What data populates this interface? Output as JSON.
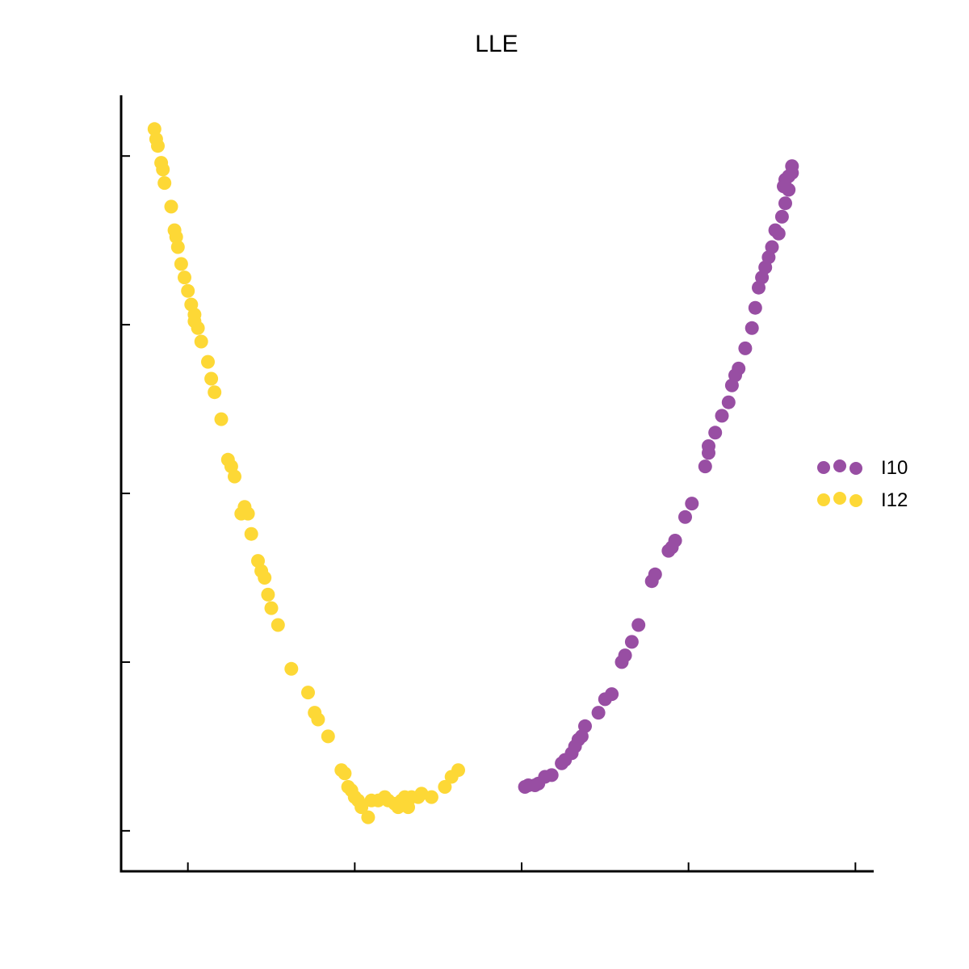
{
  "chart_data": {
    "type": "scatter",
    "title": "LLE",
    "xlabel": "",
    "ylabel": "",
    "xlim": [
      -0.095,
      0.13
    ],
    "ylim": [
      -0.02,
      0.21
    ],
    "x_ticks": [
      -0.075,
      -0.025,
      0.025,
      0.075,
      0.125
    ],
    "y_ticks": [
      -0.008,
      0.042,
      0.092,
      0.142,
      0.192
    ],
    "show_tick_labels": false,
    "grid": false,
    "legend_position": "right",
    "series": [
      {
        "name": "I10",
        "color": "#984ea3",
        "points": [
          [
            0.026,
            0.005
          ],
          [
            0.027,
            0.0055
          ],
          [
            0.029,
            0.0055
          ],
          [
            0.03,
            0.006
          ],
          [
            0.032,
            0.008
          ],
          [
            0.034,
            0.0085
          ],
          [
            0.037,
            0.012
          ],
          [
            0.038,
            0.013
          ],
          [
            0.04,
            0.015
          ],
          [
            0.041,
            0.017
          ],
          [
            0.042,
            0.019
          ],
          [
            0.044,
            0.023
          ],
          [
            0.048,
            0.027
          ],
          [
            0.05,
            0.031
          ],
          [
            0.052,
            0.0325
          ],
          [
            0.055,
            0.042
          ],
          [
            0.056,
            0.044
          ],
          [
            0.058,
            0.048
          ],
          [
            0.06,
            0.053
          ],
          [
            0.064,
            0.066
          ],
          [
            0.065,
            0.068
          ],
          [
            0.069,
            0.075
          ],
          [
            0.071,
            0.078
          ],
          [
            0.074,
            0.085
          ],
          [
            0.076,
            0.089
          ],
          [
            0.08,
            0.1
          ],
          [
            0.081,
            0.104
          ],
          [
            0.083,
            0.11
          ],
          [
            0.085,
            0.115
          ],
          [
            0.087,
            0.119
          ],
          [
            0.088,
            0.124
          ],
          [
            0.09,
            0.129
          ],
          [
            0.092,
            0.135
          ],
          [
            0.094,
            0.141
          ],
          [
            0.095,
            0.147
          ],
          [
            0.096,
            0.153
          ],
          [
            0.097,
            0.156
          ],
          [
            0.098,
            0.159
          ],
          [
            0.099,
            0.162
          ],
          [
            0.1,
            0.165
          ],
          [
            0.102,
            0.169
          ],
          [
            0.103,
            0.174
          ],
          [
            0.104,
            0.178
          ],
          [
            0.105,
            0.182
          ],
          [
            0.104,
            0.185
          ],
          [
            0.105,
            0.186
          ],
          [
            0.106,
            0.187
          ],
          [
            0.106,
            0.189
          ],
          [
            0.1035,
            0.183
          ],
          [
            0.101,
            0.17
          ],
          [
            0.089,
            0.127
          ],
          [
            0.081,
            0.106
          ],
          [
            0.07,
            0.076
          ],
          [
            0.043,
            0.02
          ]
        ]
      },
      {
        "name": "I12",
        "color": "#fdd836",
        "points": [
          [
            -0.085,
            0.2
          ],
          [
            -0.0845,
            0.197
          ],
          [
            -0.084,
            0.195
          ],
          [
            -0.083,
            0.19
          ],
          [
            -0.0825,
            0.188
          ],
          [
            -0.082,
            0.184
          ],
          [
            -0.08,
            0.177
          ],
          [
            -0.079,
            0.17
          ],
          [
            -0.0785,
            0.168
          ],
          [
            -0.078,
            0.165
          ],
          [
            -0.077,
            0.16
          ],
          [
            -0.076,
            0.156
          ],
          [
            -0.075,
            0.152
          ],
          [
            -0.074,
            0.148
          ],
          [
            -0.073,
            0.145
          ],
          [
            -0.072,
            0.141
          ],
          [
            -0.071,
            0.137
          ],
          [
            -0.069,
            0.131
          ],
          [
            -0.068,
            0.126
          ],
          [
            -0.067,
            0.122
          ],
          [
            -0.062,
            0.1
          ],
          [
            -0.061,
            0.097
          ],
          [
            -0.058,
            0.088
          ],
          [
            -0.057,
            0.086
          ],
          [
            -0.056,
            0.08
          ],
          [
            -0.054,
            0.072
          ],
          [
            -0.052,
            0.067
          ],
          [
            -0.051,
            0.062
          ],
          [
            -0.05,
            0.058
          ],
          [
            -0.048,
            0.053
          ],
          [
            -0.044,
            0.04
          ],
          [
            -0.039,
            0.033
          ],
          [
            -0.037,
            0.027
          ],
          [
            -0.036,
            0.025
          ],
          [
            -0.033,
            0.02
          ],
          [
            -0.029,
            0.01
          ],
          [
            -0.028,
            0.009
          ],
          [
            -0.027,
            0.005
          ],
          [
            -0.026,
            0.004
          ],
          [
            -0.025,
            0.002
          ],
          [
            -0.024,
            0.001
          ],
          [
            -0.023,
            -0.001
          ],
          [
            -0.021,
            -0.004
          ],
          [
            -0.02,
            0.001
          ],
          [
            -0.018,
            0.001
          ],
          [
            -0.016,
            0.002
          ],
          [
            -0.015,
            0.001
          ],
          [
            -0.013,
            0.0
          ],
          [
            -0.012,
            -0.001
          ],
          [
            -0.011,
            0.001
          ],
          [
            -0.01,
            0.002
          ],
          [
            -0.009,
            -0.001
          ],
          [
            -0.008,
            0.002
          ],
          [
            -0.006,
            0.002
          ],
          [
            -0.005,
            0.003
          ],
          [
            -0.002,
            0.002
          ],
          [
            0.002,
            0.005
          ],
          [
            0.004,
            0.008
          ],
          [
            0.006,
            0.01
          ],
          [
            -0.073,
            0.143
          ],
          [
            -0.065,
            0.114
          ],
          [
            -0.063,
            0.102
          ],
          [
            -0.059,
            0.086
          ],
          [
            -0.053,
            0.069
          ]
        ]
      }
    ]
  }
}
